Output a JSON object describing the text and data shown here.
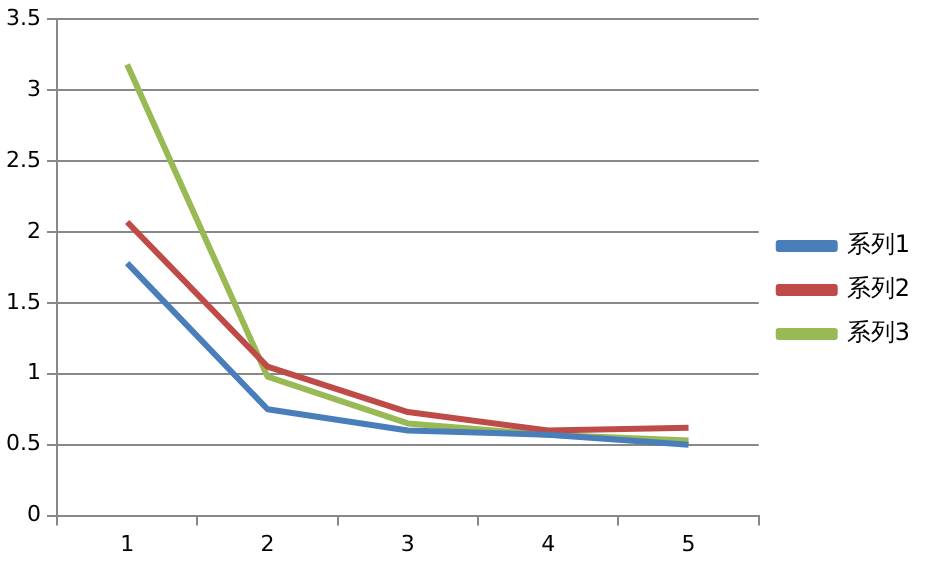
{
  "chart_data": {
    "type": "line",
    "categories": [
      "1",
      "2",
      "3",
      "4",
      "5"
    ],
    "series": [
      {
        "name": "系列1",
        "color": "#4a7ebb",
        "values": [
          1.78,
          0.75,
          0.6,
          0.57,
          0.5
        ]
      },
      {
        "name": "系列2",
        "color": "#be4b48",
        "values": [
          2.07,
          1.05,
          0.73,
          0.6,
          0.62
        ]
      },
      {
        "name": "系列3",
        "color": "#98b954",
        "values": [
          3.18,
          0.98,
          0.65,
          0.57,
          0.53
        ]
      }
    ],
    "ylim": [
      0,
      3.5
    ],
    "yticks": [
      0,
      0.5,
      1,
      1.5,
      2,
      2.5,
      3,
      3.5
    ],
    "grid": "y",
    "legend": "right",
    "marker": "none",
    "line_style": "solid"
  }
}
